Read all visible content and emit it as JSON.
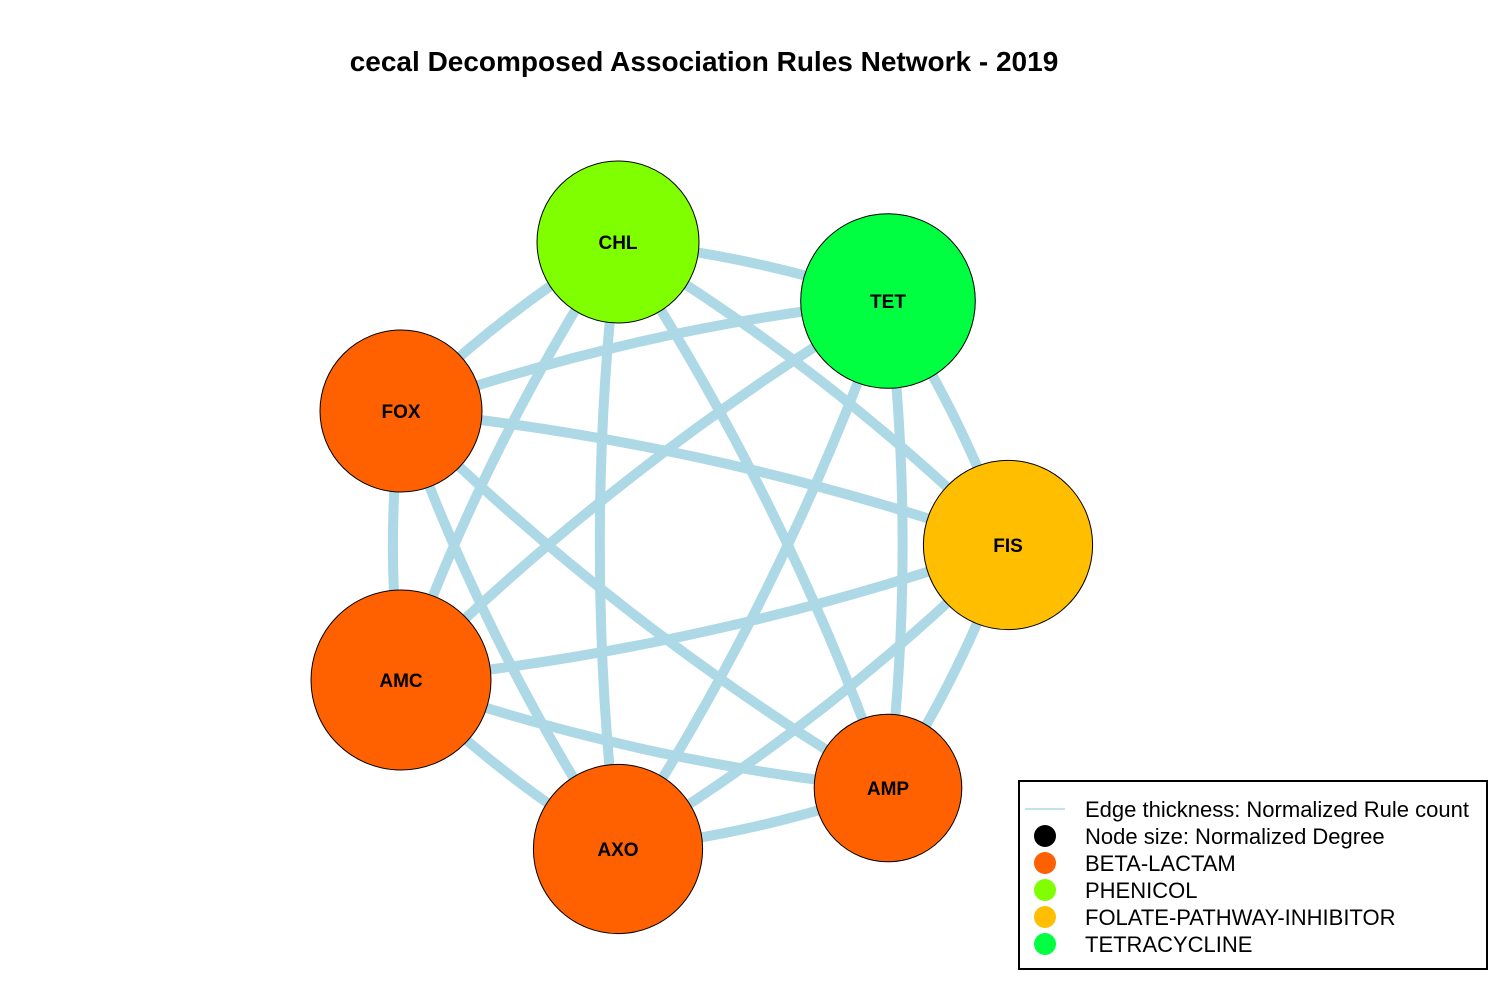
{
  "title": "cecal Decomposed Association Rules Network - 2019",
  "edge_color": "#add8e6",
  "node_border_color": "#000000",
  "categories": [
    {
      "name": "BETA-LACTAM",
      "color": "#ff6000"
    },
    {
      "name": "PHENICOL",
      "color": "#80ff00"
    },
    {
      "name": "FOLATE-PATHWAY-INHIBITOR",
      "color": "#ffbf00"
    },
    {
      "name": "TETRACYCLINE",
      "color": "#00ff40"
    }
  ],
  "nodes": [
    {
      "id": "CHL",
      "label": "CHL",
      "category": "PHENICOL",
      "color": "#80ff00",
      "relative_size": 0.9
    },
    {
      "id": "TET",
      "label": "TET",
      "category": "TETRACYCLINE",
      "color": "#00ff40",
      "relative_size": 0.97
    },
    {
      "id": "FIS",
      "label": "FIS",
      "category": "FOLATE-PATHWAY-INHIBITOR",
      "color": "#ffbf00",
      "relative_size": 0.94
    },
    {
      "id": "AMP",
      "label": "AMP",
      "category": "BETA-LACTAM",
      "color": "#ff6000",
      "relative_size": 0.82
    },
    {
      "id": "AXO",
      "label": "AXO",
      "category": "BETA-LACTAM",
      "color": "#ff6000",
      "relative_size": 0.94
    },
    {
      "id": "AMC",
      "label": "AMC",
      "category": "BETA-LACTAM",
      "color": "#ff6000",
      "relative_size": 1.0
    },
    {
      "id": "FOX",
      "label": "FOX",
      "category": "BETA-LACTAM",
      "color": "#ff6000",
      "relative_size": 0.9
    }
  ],
  "edges": [
    {
      "source": "CHL",
      "target": "TET",
      "weight": 1
    },
    {
      "source": "CHL",
      "target": "FIS",
      "weight": 1
    },
    {
      "source": "CHL",
      "target": "AMP",
      "weight": 1
    },
    {
      "source": "CHL",
      "target": "AXO",
      "weight": 1
    },
    {
      "source": "CHL",
      "target": "AMC",
      "weight": 1
    },
    {
      "source": "CHL",
      "target": "FOX",
      "weight": 1
    },
    {
      "source": "TET",
      "target": "FIS",
      "weight": 1
    },
    {
      "source": "TET",
      "target": "AMP",
      "weight": 1
    },
    {
      "source": "TET",
      "target": "AXO",
      "weight": 1
    },
    {
      "source": "TET",
      "target": "AMC",
      "weight": 1
    },
    {
      "source": "TET",
      "target": "FOX",
      "weight": 1
    },
    {
      "source": "FIS",
      "target": "AMP",
      "weight": 1
    },
    {
      "source": "FIS",
      "target": "AXO",
      "weight": 1
    },
    {
      "source": "FIS",
      "target": "AMC",
      "weight": 1
    },
    {
      "source": "FIS",
      "target": "FOX",
      "weight": 1
    },
    {
      "source": "AMP",
      "target": "AXO",
      "weight": 1
    },
    {
      "source": "AMP",
      "target": "AMC",
      "weight": 1
    },
    {
      "source": "AMP",
      "target": "FOX",
      "weight": 1
    },
    {
      "source": "AXO",
      "target": "AMC",
      "weight": 1
    },
    {
      "source": "AXO",
      "target": "FOX",
      "weight": 1
    },
    {
      "source": "AMC",
      "target": "FOX",
      "weight": 1
    }
  ],
  "legend": {
    "items": [
      {
        "label": "Edge thickness: Normalized Rule count",
        "symbol": "line",
        "color": "#add8e6"
      },
      {
        "label": "Node size: Normalized Degree",
        "symbol": "dot",
        "color": "#000000"
      },
      {
        "label": "BETA-LACTAM",
        "symbol": "dot",
        "color": "#ff6000"
      },
      {
        "label": "PHENICOL",
        "symbol": "dot",
        "color": "#80ff00"
      },
      {
        "label": "FOLATE-PATHWAY-INHIBITOR",
        "symbol": "dot",
        "color": "#ffbf00"
      },
      {
        "label": "TETRACYCLINE",
        "symbol": "dot",
        "color": "#00ff40"
      }
    ]
  }
}
